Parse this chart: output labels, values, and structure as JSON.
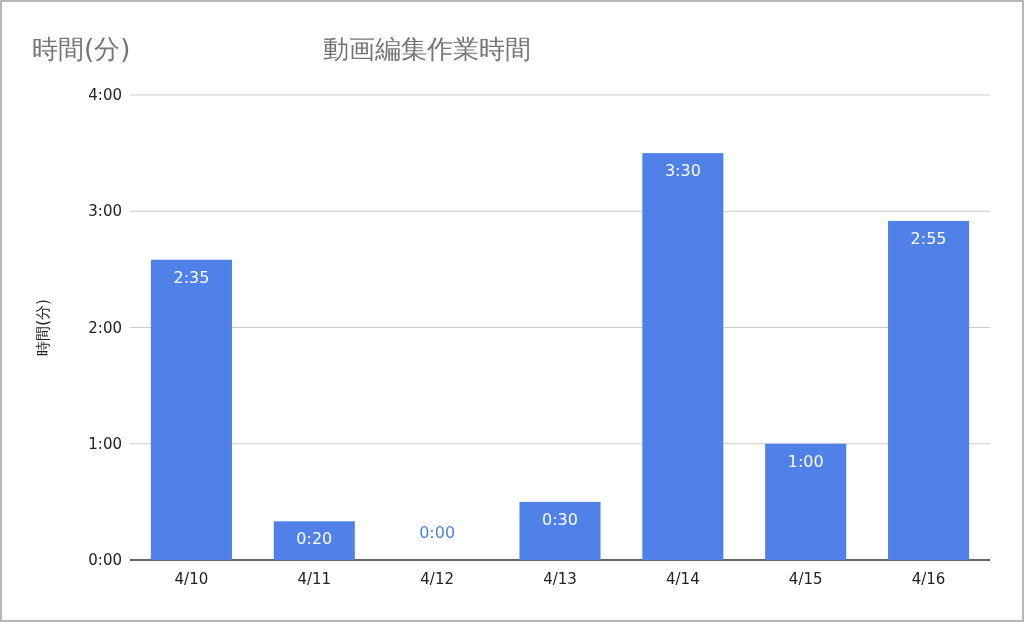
{
  "chart_data": {
    "type": "bar",
    "title": "動画編集作業時間",
    "ylabel": "時間(分)",
    "annotations": [
      "時間(分)"
    ],
    "categories": [
      "4/10",
      "4/11",
      "4/12",
      "4/13",
      "4/14",
      "4/15",
      "4/16"
    ],
    "values": [
      2.583,
      0.333,
      0,
      0.5,
      3.5,
      1,
      2.917
    ],
    "value_labels": [
      "2:35",
      "0:20",
      "0:00",
      "0:30",
      "3:30",
      "1:00",
      "2:55"
    ],
    "color": "#4f81e9",
    "ylim": [
      0,
      4
    ],
    "yticks": [
      {
        "value": 0,
        "label": "0:00"
      },
      {
        "value": 1,
        "label": "1:00"
      },
      {
        "value": 2,
        "label": "2:00"
      },
      {
        "value": 3,
        "label": "3:00"
      },
      {
        "value": 4,
        "label": "4:00"
      }
    ],
    "grid": "y"
  }
}
